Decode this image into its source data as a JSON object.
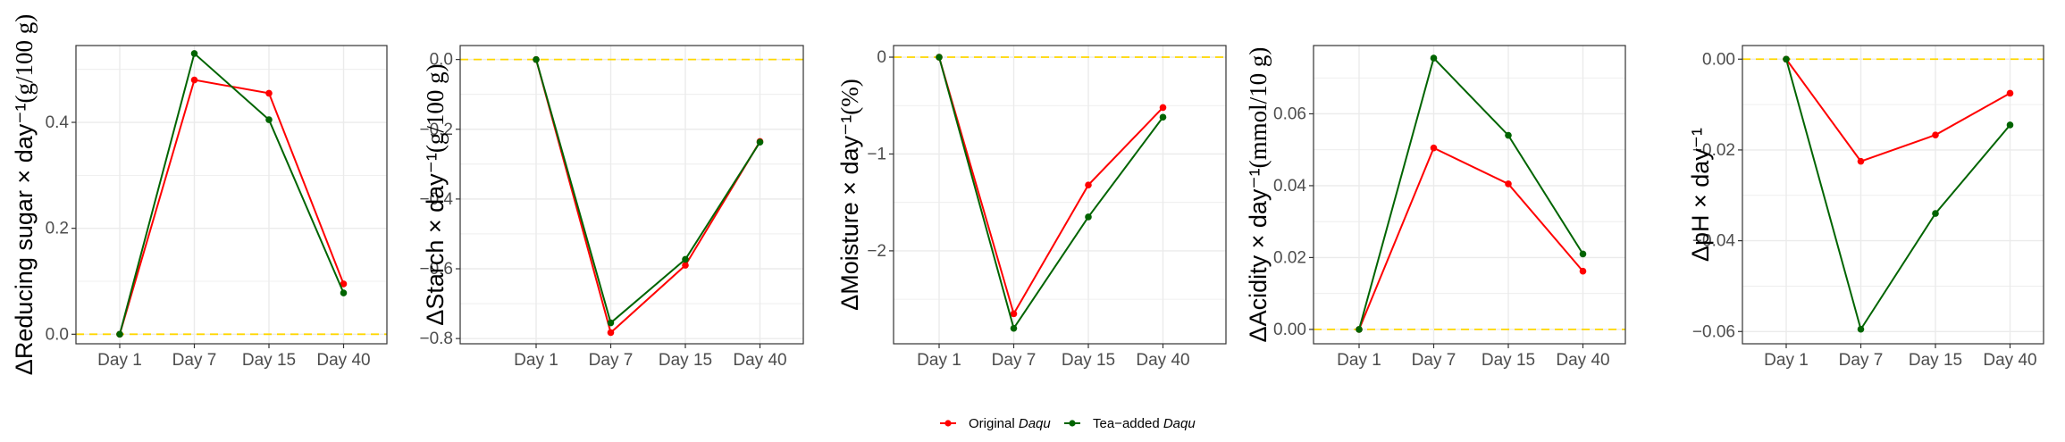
{
  "chart_data": [
    {
      "type": "line",
      "ylabel_main": "ΔReducing sugar × day⁻¹",
      "ylabel_unit": "(g/100 g)",
      "categories": [
        "Day 1",
        "Day 7",
        "Day 15",
        "Day 40"
      ],
      "ylim": [
        -0.018,
        0.545
      ],
      "yticks": [
        0.0,
        0.2,
        0.4
      ],
      "ytick_labels": [
        "0.0",
        "0.2",
        "0.4"
      ],
      "series": [
        {
          "name": "Original Daqu",
          "values": [
            0.0,
            0.48,
            0.455,
            0.095
          ]
        },
        {
          "name": "Tea-added Daqu",
          "values": [
            0.0,
            0.53,
            0.405,
            0.078
          ]
        }
      ]
    },
    {
      "type": "line",
      "ylabel_main": "ΔStarch × day⁻¹",
      "ylabel_unit": "(g/100 g)",
      "categories": [
        "Day 1",
        "Day 7",
        "Day 15",
        "Day 40"
      ],
      "ylim": [
        -0.815,
        0.04
      ],
      "yticks": [
        0.0,
        -0.2,
        -0.4,
        -0.6,
        -0.8
      ],
      "ytick_labels": [
        "0.0",
        "−0.2",
        "−0.4",
        "−0.6",
        "−0.8"
      ],
      "series": [
        {
          "name": "Original Daqu",
          "values": [
            0.0,
            -0.783,
            -0.59,
            -0.235
          ]
        },
        {
          "name": "Tea-added Daqu",
          "values": [
            0.0,
            -0.755,
            -0.573,
            -0.237
          ]
        }
      ]
    },
    {
      "type": "line",
      "ylabel_main": "ΔMoisture × day⁻¹",
      "ylabel_unit": "(%)",
      "categories": [
        "Day 1",
        "Day 7",
        "Day 15",
        "Day 40"
      ],
      "ylim": [
        -2.96,
        0.12
      ],
      "yticks": [
        0,
        -1,
        -2
      ],
      "ytick_labels": [
        "0",
        "−1",
        "−2"
      ],
      "series": [
        {
          "name": "Original Daqu",
          "values": [
            0.0,
            -2.65,
            -1.32,
            -0.52
          ]
        },
        {
          "name": "Tea-added Daqu",
          "values": [
            0.0,
            -2.8,
            -1.65,
            -0.62
          ]
        }
      ]
    },
    {
      "type": "line",
      "ylabel_main": "ΔAcidity × day⁻¹",
      "ylabel_unit": "(mmol/10 g)",
      "categories": [
        "Day 1",
        "Day 7",
        "Day 15",
        "Day 40"
      ],
      "ylim": [
        -0.004,
        0.079
      ],
      "yticks": [
        0.0,
        0.02,
        0.04,
        0.06
      ],
      "ytick_labels": [
        "0.00",
        "0.02",
        "0.04",
        "0.06"
      ],
      "series": [
        {
          "name": "Original Daqu",
          "values": [
            0.0,
            0.0505,
            0.0405,
            0.0162
          ]
        },
        {
          "name": "Tea-added Daqu",
          "values": [
            0.0,
            0.0755,
            0.054,
            0.021
          ]
        }
      ]
    },
    {
      "type": "line",
      "ylabel_main": "ΔpH × day⁻¹",
      "ylabel_unit": "",
      "categories": [
        "Day 1",
        "Day 7",
        "Day 15",
        "Day 40"
      ],
      "ylim": [
        -0.0627,
        0.003
      ],
      "yticks": [
        0.0,
        -0.02,
        -0.04,
        -0.06
      ],
      "ytick_labels": [
        "0.00",
        "−0.02",
        "−0.04",
        "−0.06"
      ],
      "series": [
        {
          "name": "Original Daqu",
          "values": [
            0.0,
            -0.0225,
            -0.0167,
            -0.0075
          ]
        },
        {
          "name": "Tea-added Daqu",
          "values": [
            0.0,
            -0.0595,
            -0.034,
            -0.0145
          ]
        }
      ]
    }
  ],
  "legend": {
    "position": "bottom-center",
    "items": [
      {
        "prefix": "Original ",
        "italic": "Daqu",
        "color": "#ff0000"
      },
      {
        "prefix": "Tea−added ",
        "italic": "Daqu",
        "color": "#006400"
      }
    ]
  },
  "style": {
    "series_colors": [
      "#ff0000",
      "#006400"
    ],
    "zero_line_color": "#ffd700",
    "grid": true,
    "grid_color": "#ebebeb",
    "border_color": "#333333"
  }
}
